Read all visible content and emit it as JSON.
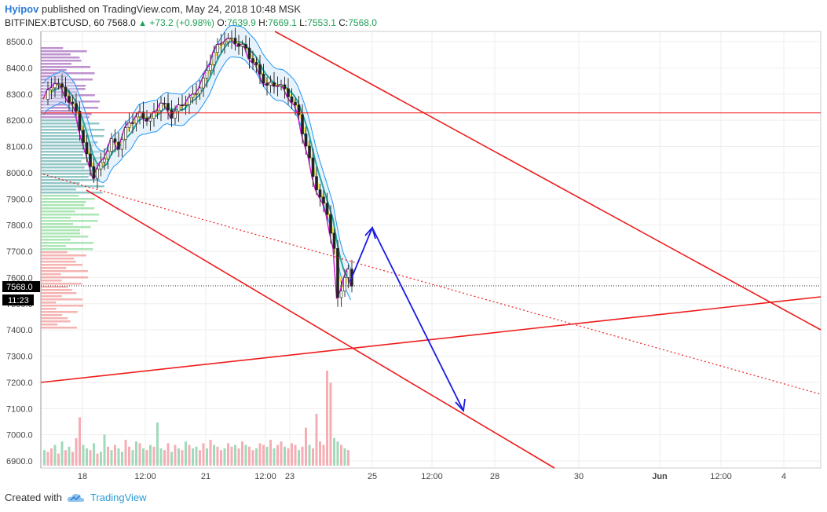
{
  "header": {
    "author": "Hyipov",
    "published": "published on TradingView.com, May 24, 2018 10:48 MSK"
  },
  "symbol_line": {
    "symbol": "BITFINEX:BTCUSD, 60",
    "last": "7568.0",
    "change": "+73.2 (+0.98%)",
    "o_label": "O:",
    "o": "7639.9",
    "h_label": "H:",
    "h": "7669.1",
    "l_label": "L:",
    "l": "7553.1",
    "c_label": "C:",
    "c": "7568.0"
  },
  "footer": {
    "created_with": "Created with",
    "brand": "TradingView"
  },
  "colors": {
    "up": "#21a05a",
    "trend": "#ee1c1c",
    "arrow": "#1a1ae6",
    "band": "#2196f3"
  },
  "chart_data": {
    "type": "candlestick",
    "y_ticks": [
      "8500.0",
      "8400.0",
      "8300.0",
      "8200.0",
      "8100.0",
      "8000.0",
      "7900.0",
      "7800.0",
      "7700.0",
      "7600.0",
      "7500.0",
      "7400.0",
      "7300.0",
      "7200.0",
      "7100.0",
      "7000.0",
      "6900.0"
    ],
    "x_ticks": [
      "18",
      "12:00",
      "21",
      "12:00",
      "23",
      "25",
      "12:00",
      "28",
      "30",
      "Jun",
      "12:00",
      "4"
    ],
    "price_label": "7568.0",
    "time_label": "11:23",
    "ylim": [
      6870,
      8530
    ],
    "close_path": [
      [
        0,
        8280
      ],
      [
        3,
        8350
      ],
      [
        6,
        8300
      ],
      [
        9,
        8230
      ],
      [
        12,
        8060
      ],
      [
        14,
        7990
      ],
      [
        16,
        8030
      ],
      [
        19,
        8120
      ],
      [
        21,
        8100
      ],
      [
        24,
        8190
      ],
      [
        27,
        8220
      ],
      [
        30,
        8200
      ],
      [
        33,
        8270
      ],
      [
        36,
        8220
      ],
      [
        39,
        8260
      ],
      [
        42,
        8290
      ],
      [
        45,
        8350
      ],
      [
        48,
        8460
      ],
      [
        51,
        8510
      ],
      [
        54,
        8500
      ],
      [
        57,
        8470
      ],
      [
        60,
        8400
      ],
      [
        63,
        8330
      ],
      [
        66,
        8340
      ],
      [
        69,
        8300
      ],
      [
        72,
        8220
      ],
      [
        74,
        8100
      ],
      [
        76,
        7990
      ],
      [
        78,
        7900
      ],
      [
        80,
        7850
      ],
      [
        82,
        7700
      ],
      [
        83,
        7520
      ],
      [
        84,
        7560
      ],
      [
        85,
        7600
      ],
      [
        86,
        7620
      ],
      [
        87,
        7570
      ]
    ],
    "volume": [
      9,
      8,
      10,
      12,
      7,
      14,
      9,
      11,
      8,
      16,
      28,
      12,
      10,
      9,
      13,
      7,
      8,
      18,
      11,
      9,
      12,
      10,
      8,
      15,
      11,
      9,
      14,
      13,
      10,
      9,
      12,
      11,
      25,
      10,
      9,
      13,
      8,
      12,
      10,
      9,
      14,
      12,
      10,
      11,
      9,
      13,
      10,
      15,
      12,
      11,
      9,
      10,
      13,
      11,
      12,
      10,
      14,
      12,
      11,
      9,
      10,
      13,
      12,
      11,
      15,
      10,
      12,
      14,
      11,
      10,
      13,
      12,
      9,
      11,
      22,
      12,
      10,
      30,
      14,
      12,
      55,
      48,
      16,
      14,
      12,
      10,
      9
    ],
    "volume_up": [
      1,
      0,
      0,
      1,
      0,
      1,
      0,
      1,
      0,
      0,
      0,
      1,
      1,
      0,
      1,
      0,
      1,
      1,
      0,
      1,
      0,
      1,
      1,
      0,
      0,
      1,
      1,
      0,
      1,
      0,
      1,
      0,
      1,
      1,
      0,
      0,
      1,
      0,
      1,
      0,
      1,
      0,
      1,
      1,
      0,
      0,
      1,
      0,
      1,
      0,
      0,
      1,
      0,
      0,
      1,
      0,
      0,
      1,
      0,
      0,
      1,
      0,
      0,
      1,
      0,
      1,
      0,
      0,
      1,
      0,
      0,
      0,
      1,
      0,
      0,
      1,
      0,
      0,
      0,
      0,
      0,
      0,
      1,
      1,
      0,
      1,
      0
    ],
    "annotations": {
      "horizontal_line": 8228,
      "dashed_last_price": 7568
    }
  }
}
